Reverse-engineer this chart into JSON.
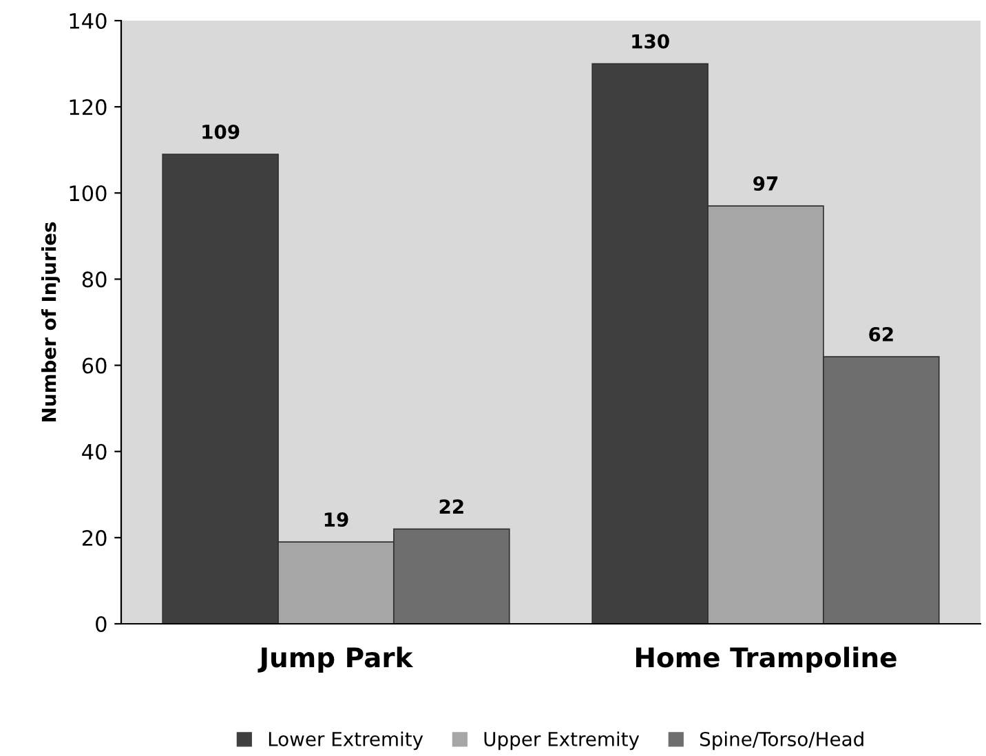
{
  "chart_data": {
    "type": "bar",
    "ylabel": "Number of Injuries",
    "categories": [
      "Jump Park",
      "Home Trampoline"
    ],
    "series": [
      {
        "name": "Lower Extremity",
        "color": "#404040",
        "values": [
          109,
          130
        ]
      },
      {
        "name": "Upper Extremity",
        "color": "#a6a6a6",
        "values": [
          19,
          97
        ]
      },
      {
        "name": "Spine/Torso/Head",
        "color": "#6e6e6e",
        "values": [
          22,
          62
        ]
      }
    ],
    "ylim": [
      0,
      140
    ],
    "yticks": [
      0,
      20,
      40,
      60,
      80,
      100,
      120,
      140
    ],
    "data_labels": true,
    "grid": false,
    "legend": "bottom"
  }
}
